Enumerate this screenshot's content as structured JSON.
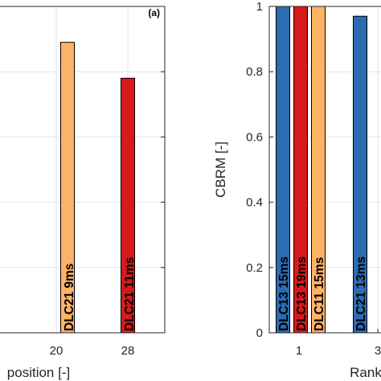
{
  "chart_data": [
    {
      "type": "bar",
      "panel_label": "(a)",
      "xlabel": "position [-]",
      "ylabel": "",
      "x_ticks": [
        "20",
        "28"
      ],
      "ylim": [
        0,
        1
      ],
      "grid": true,
      "bars": [
        {
          "x": "20",
          "value": 0.89,
          "label": "DLC21 9ms",
          "color": "#fdb366"
        },
        {
          "x": "28",
          "value": 0.78,
          "label": "DLC21 11ms",
          "color": "#d7191c"
        }
      ]
    },
    {
      "type": "bar",
      "xlabel": "Rank",
      "ylabel": "CBRM [-]",
      "ylim": [
        0,
        1
      ],
      "y_ticks": [
        "0",
        "0.2",
        "0.4",
        "0.6",
        "0.8",
        "1"
      ],
      "x_ticks": [
        "1",
        "3"
      ],
      "grid": true,
      "bars": [
        {
          "x": "1",
          "value": 1.0,
          "label": "DLC13 15ms",
          "color": "#2b6cb3"
        },
        {
          "x": "1",
          "value": 1.0,
          "label": "DLC13 19ms",
          "color": "#d7191c"
        },
        {
          "x": "1",
          "value": 1.0,
          "label": "DLC11 15ms",
          "color": "#fdb366"
        },
        {
          "x": "3",
          "value": 0.97,
          "label": "DLC21 13ms",
          "color": "#2b6cb3"
        }
      ]
    }
  ]
}
